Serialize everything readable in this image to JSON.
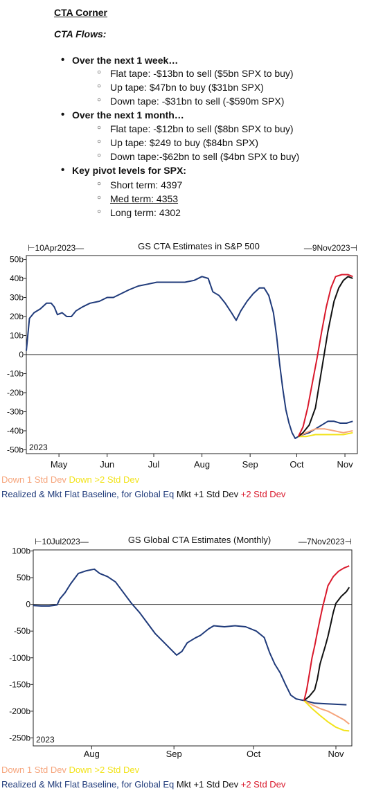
{
  "notes": {
    "heading": "CTA Corner",
    "subheading": "CTA Flows:",
    "sections": [
      {
        "title": "Over the next 1 week…",
        "items": [
          "Flat tape: -$13bn to sell ($5bn SPX to buy)",
          "Up tape: $47bn to buy ($31bn SPX)",
          "Down tape: -$31bn to sell (-$590m SPX)"
        ]
      },
      {
        "title": "Over the next 1 month…",
        "items": [
          "Flat tape: -$12bn to sell ($8bn SPX to buy)",
          "Up tape: $249 to buy ($84bn SPX)",
          "Down tape:-$62bn to sell ($4bn SPX to buy)"
        ]
      },
      {
        "title": "Key pivot levels for SPX:",
        "items": [
          "Short term: 4397",
          "Med term: 4353",
          "Long term: 4302"
        ]
      }
    ]
  },
  "chart_data": [
    {
      "type": "line",
      "title": "GS CTA Estimates in S&P 500",
      "start_label": "10Apr2023",
      "end_label": "9Nov2023",
      "year_label": "2023",
      "x_tick_labels": [
        "May",
        "Jun",
        "Jul",
        "Aug",
        "Sep",
        "Oct",
        "Nov"
      ],
      "y_tick_labels": [
        "50b",
        "40b",
        "30b",
        "20b",
        "10b",
        "0",
        "-10b",
        "-20b",
        "-30b",
        "-40b",
        "-50b"
      ],
      "ylim": [
        -52,
        52
      ],
      "y_unit": "$bn",
      "x_unit": "day index (0 = 10Apr2023)",
      "xlim": [
        0,
        213
      ],
      "x_ticks": [
        21,
        52,
        82,
        113,
        144,
        174,
        205
      ],
      "grid": false,
      "zero_line": true,
      "legend_position": "bottom",
      "series": [
        {
          "name": "Realized & Mkt Flat Baseline, for Global Eq",
          "color": "#1f3a7a",
          "points": [
            [
              0,
              2
            ],
            [
              2,
              19
            ],
            [
              5,
              22
            ],
            [
              9,
              24
            ],
            [
              13,
              27
            ],
            [
              16,
              27
            ],
            [
              18,
              25
            ],
            [
              20,
              21
            ],
            [
              23,
              22
            ],
            [
              26,
              20
            ],
            [
              29,
              20
            ],
            [
              32,
              23
            ],
            [
              36,
              25
            ],
            [
              41,
              27
            ],
            [
              47,
              28
            ],
            [
              52,
              30
            ],
            [
              56,
              30
            ],
            [
              61,
              32
            ],
            [
              66,
              34
            ],
            [
              72,
              36
            ],
            [
              78,
              37
            ],
            [
              84,
              38
            ],
            [
              90,
              38
            ],
            [
              96,
              38
            ],
            [
              102,
              38
            ],
            [
              108,
              39
            ],
            [
              113,
              41
            ],
            [
              117,
              40
            ],
            [
              120,
              33
            ],
            [
              124,
              31
            ],
            [
              128,
              27
            ],
            [
              132,
              22
            ],
            [
              135,
              18
            ],
            [
              138,
              23
            ],
            [
              142,
              28
            ],
            [
              146,
              32
            ],
            [
              150,
              35
            ],
            [
              153,
              35
            ],
            [
              156,
              31
            ],
            [
              159,
              22
            ],
            [
              161,
              10
            ],
            [
              163,
              -5
            ],
            [
              165,
              -18
            ],
            [
              167,
              -29
            ],
            [
              169,
              -36
            ],
            [
              171,
              -41
            ],
            [
              173,
              -44
            ],
            [
              175,
              -43
            ],
            [
              178,
              -42
            ],
            [
              182,
              -41
            ],
            [
              186,
              -39
            ],
            [
              190,
              -37
            ],
            [
              194,
              -35
            ],
            [
              198,
              -35
            ],
            [
              202,
              -36
            ],
            [
              206,
              -36
            ],
            [
              210,
              -35
            ]
          ]
        },
        {
          "name": "Down 1 Std Dev",
          "color": "#f6a47b",
          "points": [
            [
              175,
              -43
            ],
            [
              180,
              -41
            ],
            [
              186,
              -39
            ],
            [
              192,
              -39
            ],
            [
              198,
              -40
            ],
            [
              204,
              -41
            ],
            [
              210,
              -40
            ]
          ]
        },
        {
          "name": "Down >2 Std Dev",
          "color": "#f2e31a",
          "points": [
            [
              175,
              -43
            ],
            [
              180,
              -43
            ],
            [
              186,
              -42
            ],
            [
              192,
              -42
            ],
            [
              198,
              -42
            ],
            [
              204,
              -42
            ],
            [
              210,
              -41
            ]
          ]
        },
        {
          "name": "Mkt +1 Std Dev",
          "color": "#111111",
          "points": [
            [
              175,
              -43
            ],
            [
              178,
              -41
            ],
            [
              182,
              -37
            ],
            [
              186,
              -28
            ],
            [
              188,
              -18
            ],
            [
              190,
              -8
            ],
            [
              192,
              2
            ],
            [
              194,
              12
            ],
            [
              196,
              20
            ],
            [
              198,
              28
            ],
            [
              201,
              35
            ],
            [
              204,
              39
            ],
            [
              207,
              41
            ],
            [
              210,
              40
            ]
          ]
        },
        {
          "name": "+2 Std Dev",
          "color": "#d9182b",
          "points": [
            [
              175,
              -43
            ],
            [
              178,
              -38
            ],
            [
              181,
              -28
            ],
            [
              184,
              -15
            ],
            [
              187,
              -2
            ],
            [
              190,
              12
            ],
            [
              193,
              25
            ],
            [
              196,
              35
            ],
            [
              199,
              41
            ],
            [
              203,
              42
            ],
            [
              207,
              42
            ],
            [
              210,
              41
            ]
          ]
        }
      ]
    },
    {
      "type": "line",
      "title": "GS Global CTA Estimates (Monthly)",
      "start_label": "10Jul2023",
      "end_label": "7Nov2023",
      "year_label": "2023",
      "x_tick_labels": [
        "Aug",
        "Sep",
        "Oct",
        "Nov"
      ],
      "y_tick_labels": [
        "100b",
        "50b",
        "0",
        "-50b",
        "-100b",
        "-150b",
        "-200b",
        "-250b"
      ],
      "ylim": [
        -265,
        102
      ],
      "y_unit": "$bn",
      "x_unit": "day index (0 = 10Jul2023)",
      "xlim": [
        0,
        120
      ],
      "x_ticks": [
        22,
        53,
        83,
        114
      ],
      "grid": false,
      "zero_line": true,
      "legend_position": "bottom",
      "series": [
        {
          "name": "Realized & Mkt Flat Baseline, for Global Eq",
          "color": "#1f3a7a",
          "points": [
            [
              0,
              -2
            ],
            [
              3,
              -3
            ],
            [
              6,
              -3
            ],
            [
              9,
              -1
            ],
            [
              10,
              10
            ],
            [
              12,
              22
            ],
            [
              14,
              38
            ],
            [
              17,
              58
            ],
            [
              20,
              63
            ],
            [
              23,
              66
            ],
            [
              25,
              58
            ],
            [
              28,
              52
            ],
            [
              31,
              42
            ],
            [
              34,
              22
            ],
            [
              37,
              2
            ],
            [
              40,
              -15
            ],
            [
              43,
              -35
            ],
            [
              46,
              -55
            ],
            [
              49,
              -70
            ],
            [
              52,
              -85
            ],
            [
              54,
              -95
            ],
            [
              56,
              -88
            ],
            [
              58,
              -72
            ],
            [
              61,
              -63
            ],
            [
              63,
              -58
            ],
            [
              66,
              -46
            ],
            [
              68,
              -40
            ],
            [
              72,
              -42
            ],
            [
              76,
              -40
            ],
            [
              80,
              -42
            ],
            [
              84,
              -50
            ],
            [
              87,
              -62
            ],
            [
              89,
              -90
            ],
            [
              91,
              -112
            ],
            [
              93,
              -128
            ],
            [
              95,
              -150
            ],
            [
              97,
              -170
            ],
            [
              99,
              -177
            ],
            [
              102,
              -180
            ],
            [
              106,
              -185
            ],
            [
              110,
              -186
            ],
            [
              114,
              -187
            ],
            [
              118,
              -188
            ]
          ]
        },
        {
          "name": "Down 1 Std Dev",
          "color": "#f6a47b",
          "points": [
            [
              102,
              -180
            ],
            [
              105,
              -188
            ],
            [
              108,
              -195
            ],
            [
              111,
              -200
            ],
            [
              114,
              -208
            ],
            [
              117,
              -216
            ],
            [
              119,
              -224
            ]
          ]
        },
        {
          "name": "Down >2 Std Dev",
          "color": "#f2e31a",
          "points": [
            [
              102,
              -180
            ],
            [
              105,
              -195
            ],
            [
              108,
              -208
            ],
            [
              111,
              -220
            ],
            [
              114,
              -230
            ],
            [
              117,
              -236
            ],
            [
              119,
              -237
            ]
          ]
        },
        {
          "name": "Mkt +1 Std Dev",
          "color": "#111111",
          "points": [
            [
              102,
              -180
            ],
            [
              104,
              -172
            ],
            [
              106,
              -160
            ],
            [
              107,
              -140
            ],
            [
              108,
              -112
            ],
            [
              109,
              -95
            ],
            [
              110,
              -78
            ],
            [
              111,
              -60
            ],
            [
              112,
              -38
            ],
            [
              113,
              -15
            ],
            [
              114,
              2
            ],
            [
              116,
              15
            ],
            [
              118,
              24
            ],
            [
              119,
              32
            ]
          ]
        },
        {
          "name": "+2 Std Dev",
          "color": "#d9182b",
          "points": [
            [
              102,
              -180
            ],
            [
              103,
              -160
            ],
            [
              104,
              -130
            ],
            [
              105,
              -100
            ],
            [
              106,
              -78
            ],
            [
              107,
              -52
            ],
            [
              108,
              -28
            ],
            [
              109,
              -5
            ],
            [
              110,
              15
            ],
            [
              111,
              35
            ],
            [
              113,
              52
            ],
            [
              115,
              62
            ],
            [
              117,
              68
            ],
            [
              119,
              72
            ]
          ]
        }
      ]
    }
  ]
}
